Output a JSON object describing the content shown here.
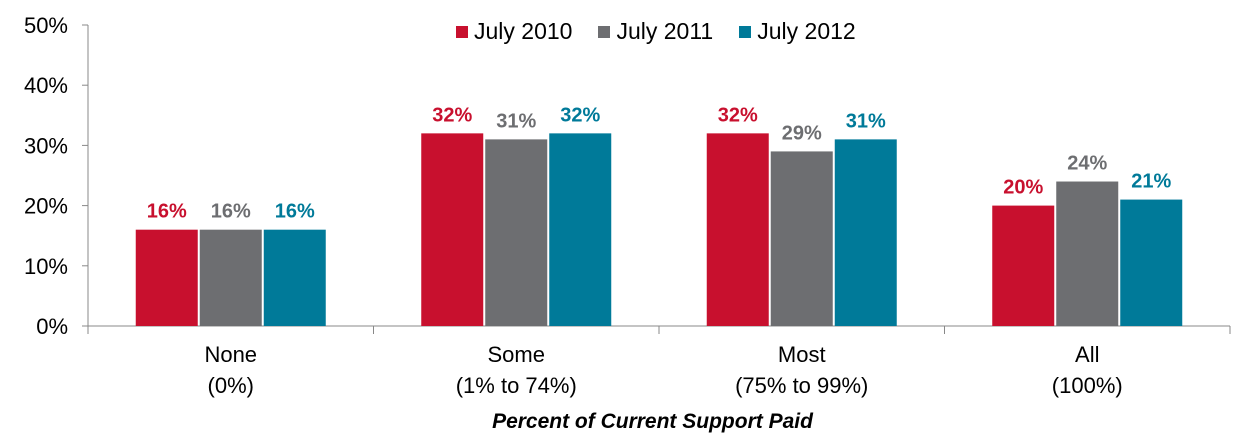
{
  "chart_data": {
    "type": "bar",
    "categories": [
      [
        "None",
        "(0%)"
      ],
      [
        "Some",
        "(1% to 74%)"
      ],
      [
        "Most",
        "(75% to 99%)"
      ],
      [
        "All",
        "(100%)"
      ]
    ],
    "series": [
      {
        "name": "July 2010",
        "color": "#c8102e",
        "values": [
          16,
          32,
          32,
          20
        ],
        "labels": [
          "16%",
          "32%",
          "32%",
          "20%"
        ]
      },
      {
        "name": "July 2011",
        "color": "#6d6e71",
        "values": [
          16,
          31,
          29,
          24
        ],
        "labels": [
          "16%",
          "31%",
          "29%",
          "24%"
        ]
      },
      {
        "name": "July 2012",
        "color": "#007a99",
        "values": [
          16,
          32,
          31,
          21
        ],
        "labels": [
          "16%",
          "32%",
          "31%",
          "21%"
        ]
      }
    ],
    "xlabel": "Percent of Current Support Paid",
    "ylim": [
      0,
      50
    ],
    "yticks": [
      "0%",
      "10%",
      "20%",
      "30%",
      "40%",
      "50%"
    ],
    "legend_position": "top-center",
    "grid": false
  }
}
